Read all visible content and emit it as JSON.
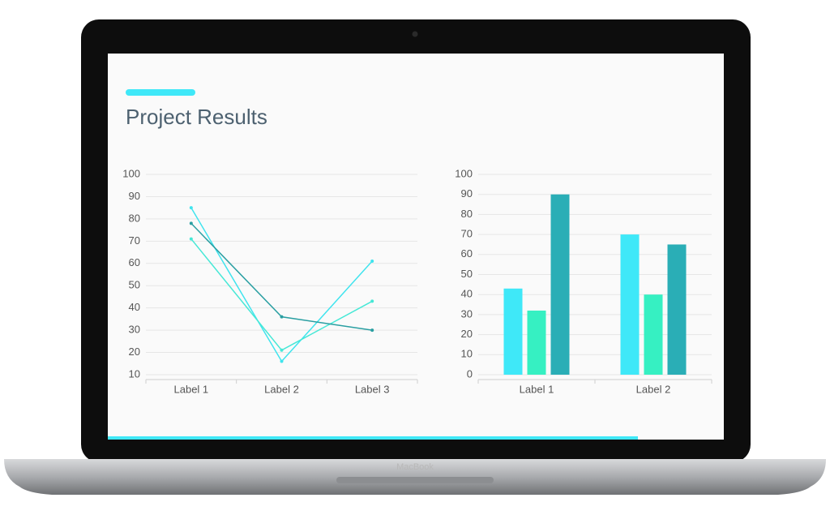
{
  "title": "Project Results",
  "device_label": "MacBook",
  "chart_data": [
    {
      "type": "line",
      "categories": [
        "Label 1",
        "Label 2",
        "Label 3"
      ],
      "series": [
        {
          "color": "#40e4ee",
          "values": [
            85,
            16,
            61
          ]
        },
        {
          "color": "#46e8d6",
          "values": [
            71,
            21,
            43
          ]
        },
        {
          "color": "#2a9fa2",
          "values": [
            78,
            36,
            30
          ]
        }
      ],
      "ylim": [
        10,
        100
      ],
      "yticks": [
        10,
        20,
        30,
        40,
        50,
        60,
        70,
        80,
        90,
        100
      ],
      "grid": true
    },
    {
      "type": "bar",
      "categories": [
        "Label 1",
        "Label 2"
      ],
      "series": [
        {
          "color": "#3fe8f8",
          "values": [
            43,
            70
          ]
        },
        {
          "color": "#36f0c2",
          "values": [
            32,
            40
          ]
        },
        {
          "color": "#2aaeb6",
          "values": [
            90,
            65
          ]
        }
      ],
      "ylim": [
        0,
        100
      ],
      "yticks": [
        0,
        10,
        20,
        30,
        40,
        50,
        60,
        70,
        80,
        90,
        100
      ],
      "grid": true
    }
  ]
}
